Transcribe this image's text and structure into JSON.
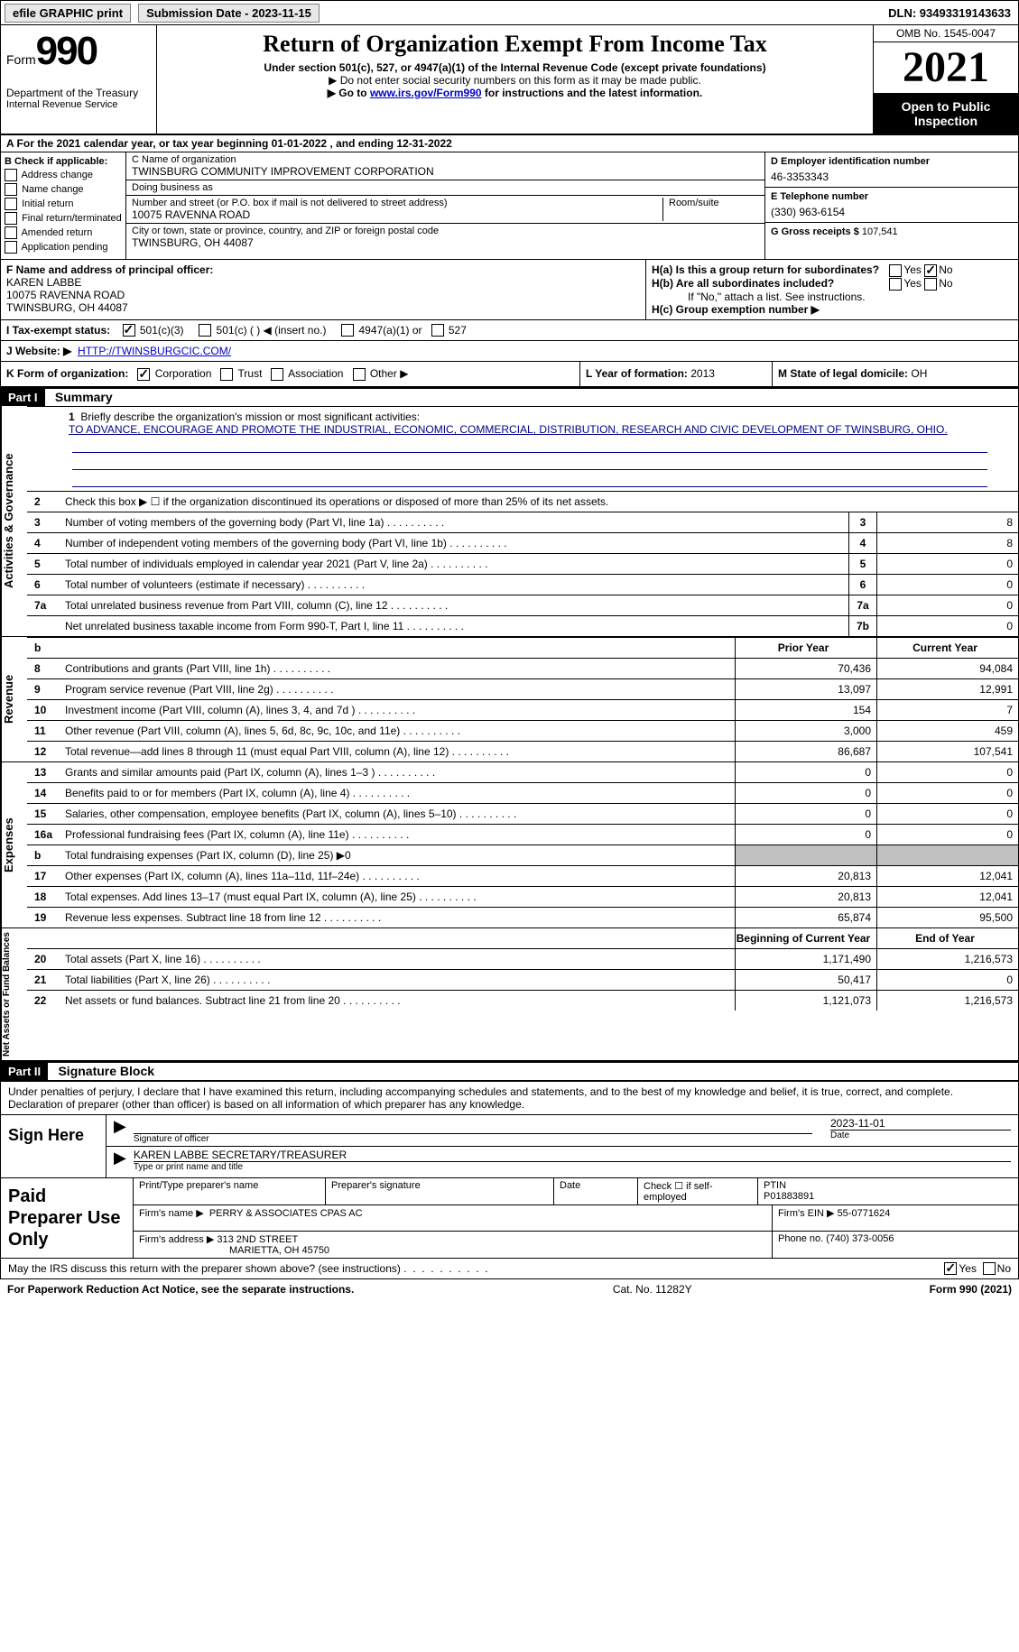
{
  "topbar": {
    "efile": "efile GRAPHIC print",
    "submission_label": "Submission Date - 2023-11-15",
    "dln": "DLN: 93493319143633"
  },
  "header": {
    "form_label": "Form",
    "form_number": "990",
    "title": "Return of Organization Exempt From Income Tax",
    "subtitle": "Under section 501(c), 527, or 4947(a)(1) of the Internal Revenue Code (except private foundations)",
    "note1": "▶ Do not enter social security numbers on this form as it may be made public.",
    "note2_pre": "▶ Go to ",
    "note2_link": "www.irs.gov/Form990",
    "note2_post": " for instructions and the latest information.",
    "dept": "Department of the Treasury",
    "irs": "Internal Revenue Service",
    "omb": "OMB No. 1545-0047",
    "year": "2021",
    "open": "Open to Public Inspection"
  },
  "row_a": {
    "text_pre": "A For the 2021 calendar year, or tax year beginning ",
    "begin": "01-01-2022",
    "mid": " , and ending ",
    "end": "12-31-2022"
  },
  "section_b": {
    "b_label": "B Check if applicable:",
    "checks": [
      "Address change",
      "Name change",
      "Initial return",
      "Final return/terminated",
      "Amended return",
      "Application pending"
    ],
    "c_label": "C Name of organization",
    "org_name": "TWINSBURG COMMUNITY IMPROVEMENT CORPORATION",
    "dba_label": "Doing business as",
    "addr_label": "Number and street (or P.O. box if mail is not delivered to street address)",
    "room_label": "Room/suite",
    "addr": "10075 RAVENNA ROAD",
    "city_label": "City or town, state or province, country, and ZIP or foreign postal code",
    "city": "TWINSBURG, OH  44087",
    "d_label": "D Employer identification number",
    "ein": "46-3353343",
    "e_label": "E Telephone number",
    "phone": "(330) 963-6154",
    "g_label": "G Gross receipts $",
    "g_val": "107,541"
  },
  "section_fh": {
    "f_label": "F Name and address of principal officer:",
    "f_name": "KAREN LABBE",
    "f_addr1": "10075 RAVENNA ROAD",
    "f_addr2": "TWINSBURG, OH  44087",
    "ha_label": "H(a)  Is this a group return for subordinates?",
    "hb_label": "H(b)  Are all subordinates included?",
    "hb_note": "If \"No,\" attach a list. See instructions.",
    "hc_label": "H(c)  Group exemption number ▶",
    "yes": "Yes",
    "no": "No"
  },
  "row_i": {
    "label": "I  Tax-exempt status:",
    "opt1": "501(c)(3)",
    "opt2": "501(c) (   ) ◀ (insert no.)",
    "opt3": "4947(a)(1) or",
    "opt4": "527"
  },
  "row_j": {
    "label": "J  Website: ▶",
    "url": "HTTP://TWINSBURGCIC.COM/"
  },
  "row_k": {
    "label": "K Form of organization:",
    "opts": [
      "Corporation",
      "Trust",
      "Association",
      "Other ▶"
    ],
    "l_label": "L Year of formation: ",
    "l_val": "2013",
    "m_label": "M State of legal domicile: ",
    "m_val": "OH"
  },
  "parts": {
    "p1": "Part I",
    "p1_title": "Summary",
    "p2": "Part II",
    "p2_title": "Signature Block"
  },
  "summary": {
    "line1_label": "Briefly describe the organization's mission or most significant activities:",
    "mission": "TO ADVANCE, ENCOURAGE AND PROMOTE THE INDUSTRIAL, ECONOMIC, COMMERCIAL, DISTRIBUTION, RESEARCH AND CIVIC DEVELOPMENT OF TWINSBURG, OHIO.",
    "line2": "Check this box ▶ ☐ if the organization discontinued its operations or disposed of more than 25% of its net assets.",
    "side_labels": {
      "gov": "Activities & Governance",
      "rev": "Revenue",
      "exp": "Expenses",
      "net": "Net Assets or Fund Balances"
    },
    "hdr_prior": "Prior Year",
    "hdr_current": "Current Year",
    "hdr_begin": "Beginning of Current Year",
    "hdr_end": "End of Year",
    "lines_gov": [
      {
        "n": "3",
        "d": "Number of voting members of the governing body (Part VI, line 1a)",
        "box": "3",
        "v": "8"
      },
      {
        "n": "4",
        "d": "Number of independent voting members of the governing body (Part VI, line 1b)",
        "box": "4",
        "v": "8"
      },
      {
        "n": "5",
        "d": "Total number of individuals employed in calendar year 2021 (Part V, line 2a)",
        "box": "5",
        "v": "0"
      },
      {
        "n": "6",
        "d": "Total number of volunteers (estimate if necessary)",
        "box": "6",
        "v": "0"
      },
      {
        "n": "7a",
        "d": "Total unrelated business revenue from Part VIII, column (C), line 12",
        "box": "7a",
        "v": "0"
      },
      {
        "n": "",
        "d": "Net unrelated business taxable income from Form 990-T, Part I, line 11",
        "box": "7b",
        "v": "0"
      }
    ],
    "lines_rev": [
      {
        "n": "8",
        "d": "Contributions and grants (Part VIII, line 1h)",
        "p": "70,436",
        "c": "94,084"
      },
      {
        "n": "9",
        "d": "Program service revenue (Part VIII, line 2g)",
        "p": "13,097",
        "c": "12,991"
      },
      {
        "n": "10",
        "d": "Investment income (Part VIII, column (A), lines 3, 4, and 7d )",
        "p": "154",
        "c": "7"
      },
      {
        "n": "11",
        "d": "Other revenue (Part VIII, column (A), lines 5, 6d, 8c, 9c, 10c, and 11e)",
        "p": "3,000",
        "c": "459"
      },
      {
        "n": "12",
        "d": "Total revenue—add lines 8 through 11 (must equal Part VIII, column (A), line 12)",
        "p": "86,687",
        "c": "107,541"
      }
    ],
    "lines_exp": [
      {
        "n": "13",
        "d": "Grants and similar amounts paid (Part IX, column (A), lines 1–3 )",
        "p": "0",
        "c": "0"
      },
      {
        "n": "14",
        "d": "Benefits paid to or for members (Part IX, column (A), line 4)",
        "p": "0",
        "c": "0"
      },
      {
        "n": "15",
        "d": "Salaries, other compensation, employee benefits (Part IX, column (A), lines 5–10)",
        "p": "0",
        "c": "0"
      },
      {
        "n": "16a",
        "d": "Professional fundraising fees (Part IX, column (A), line 11e)",
        "p": "0",
        "c": "0"
      },
      {
        "n": "b",
        "d": "Total fundraising expenses (Part IX, column (D), line 25) ▶0",
        "p": "",
        "c": "",
        "shaded": true
      },
      {
        "n": "17",
        "d": "Other expenses (Part IX, column (A), lines 11a–11d, 11f–24e)",
        "p": "20,813",
        "c": "12,041"
      },
      {
        "n": "18",
        "d": "Total expenses. Add lines 13–17 (must equal Part IX, column (A), line 25)",
        "p": "20,813",
        "c": "12,041"
      },
      {
        "n": "19",
        "d": "Revenue less expenses. Subtract line 18 from line 12",
        "p": "65,874",
        "c": "95,500"
      }
    ],
    "lines_net": [
      {
        "n": "20",
        "d": "Total assets (Part X, line 16)",
        "p": "1,171,490",
        "c": "1,216,573"
      },
      {
        "n": "21",
        "d": "Total liabilities (Part X, line 26)",
        "p": "50,417",
        "c": "0"
      },
      {
        "n": "22",
        "d": "Net assets or fund balances. Subtract line 21 from line 20",
        "p": "1,121,073",
        "c": "1,216,573"
      }
    ]
  },
  "signature": {
    "decl": "Under penalties of perjury, I declare that I have examined this return, including accompanying schedules and statements, and to the best of my knowledge and belief, it is true, correct, and complete. Declaration of preparer (other than officer) is based on all information of which preparer has any knowledge.",
    "sign_here": "Sign Here",
    "sig_officer": "Signature of officer",
    "sig_date": "2023-11-01",
    "date_lbl": "Date",
    "officer_name": "KAREN LABBE SECRETARY/TREASURER",
    "type_name": "Type or print name and title",
    "paid": "Paid Preparer Use Only",
    "print_name_lbl": "Print/Type preparer's name",
    "prep_sig_lbl": "Preparer's signature",
    "date2_lbl": "Date",
    "check_self": "Check ☐ if self-employed",
    "ptin_lbl": "PTIN",
    "ptin": "P01883891",
    "firm_name_lbl": "Firm's name    ▶",
    "firm_name": "PERRY & ASSOCIATES CPAS AC",
    "firm_ein_lbl": "Firm's EIN ▶",
    "firm_ein": "55-0771624",
    "firm_addr_lbl": "Firm's address ▶",
    "firm_addr1": "313 2ND STREET",
    "firm_addr2": "MARIETTA, OH  45750",
    "phone_lbl": "Phone no.",
    "phone": "(740) 373-0056",
    "discuss": "May the IRS discuss this return with the preparer shown above? (see instructions)",
    "yes": "Yes",
    "no": "No"
  },
  "footer": {
    "paperwork": "For Paperwork Reduction Act Notice, see the separate instructions.",
    "cat": "Cat. No. 11282Y",
    "form": "Form 990 (2021)"
  }
}
